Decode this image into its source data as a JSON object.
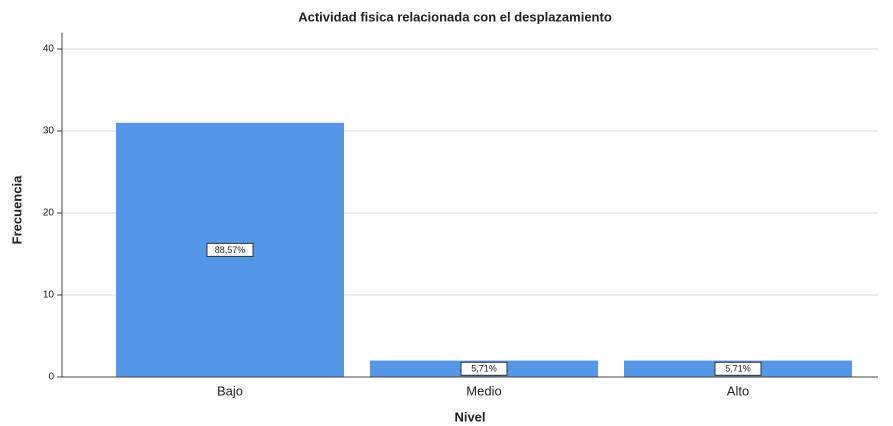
{
  "chart_data": {
    "type": "bar",
    "title": "Actividad fisica relacionada con el desplazamiento",
    "x_label": "Nivel",
    "y_label": "Frecuencia",
    "categories": [
      "Bajo",
      "Medio",
      "Alto"
    ],
    "values": [
      31,
      2,
      2
    ],
    "data_labels": [
      "88,57%",
      "5,71%",
      "5,71%"
    ],
    "color": "#5596e6",
    "ylim": [
      0,
      42
    ],
    "yticks": [
      0,
      10,
      20,
      30,
      40
    ],
    "grid": true
  }
}
